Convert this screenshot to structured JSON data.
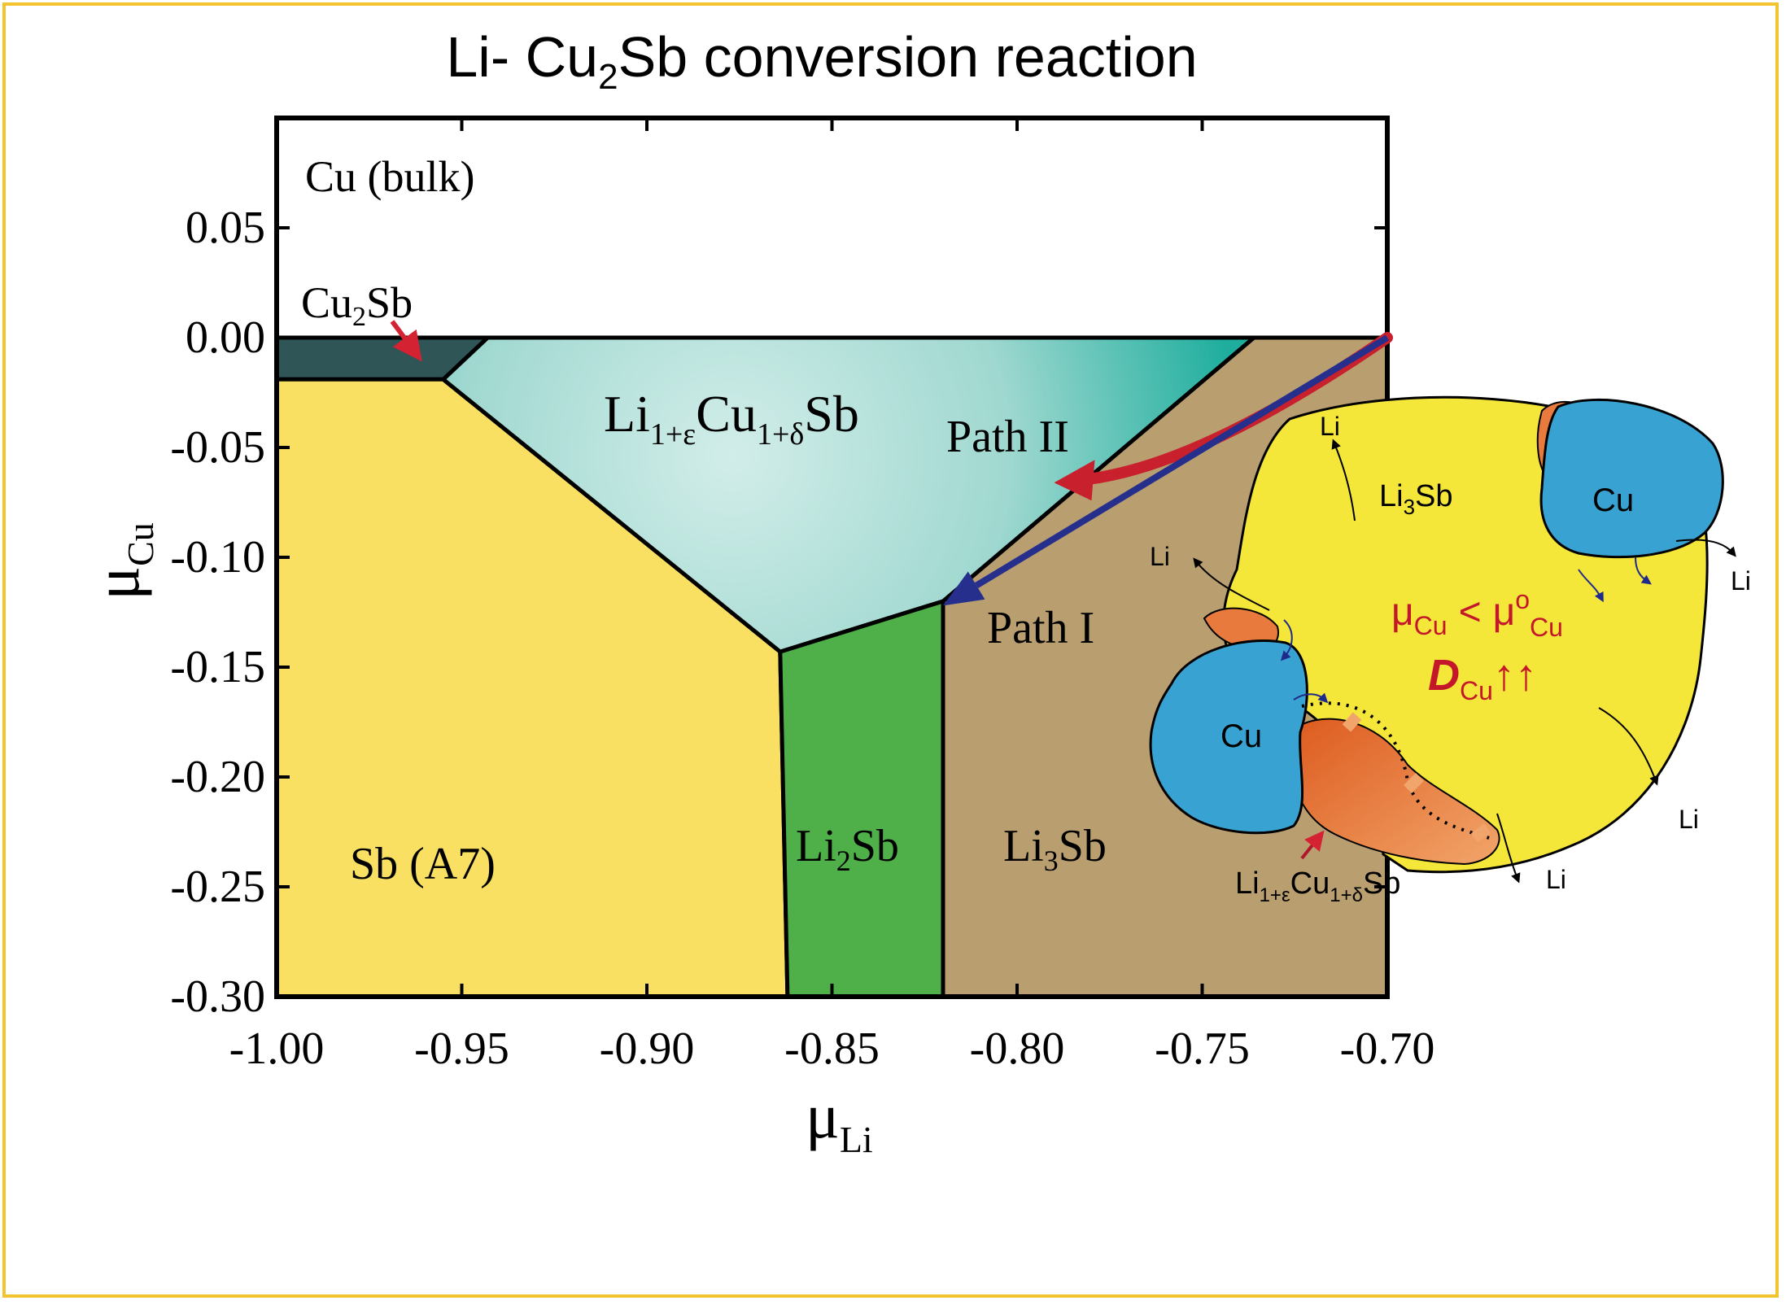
{
  "title": {
    "pre": "Li- Cu",
    "sub": "2",
    "post": "Sb conversion reaction"
  },
  "colors": {
    "frame": "#f2c530",
    "sb_region": "#f9df62",
    "li2sb_region": "#4fb04a",
    "li3sb_region": "#b99e70",
    "cu2sb_region": "#2f5557",
    "ternary_region_center": "#d2ede9",
    "ternary_region_edge": "#2ab1a3",
    "path_ii_arrow": "#c8202c",
    "path_i_arrow": "#262f8c",
    "particle_yellow": "#f5e63a",
    "cu_blue": "#38a2d2",
    "ternary_orange": "#e87a3e",
    "inset_red_text": "#c4182a"
  },
  "chart_data": {
    "type": "phase-diagram",
    "xlim": [
      -1.0,
      -0.7
    ],
    "ylim": [
      -0.3,
      0.1
    ],
    "xlabel": {
      "main": "μ",
      "sub": "Li"
    },
    "ylabel": {
      "main": "μ",
      "sub": "Cu"
    },
    "xticks": [
      -1.0,
      -0.95,
      -0.9,
      -0.85,
      -0.8,
      -0.75,
      -0.7
    ],
    "xtick_labels": [
      "-1.00",
      "-0.95",
      "-0.90",
      "-0.85",
      "-0.80",
      "-0.75",
      "-0.70"
    ],
    "yticks": [
      0.05,
      0.0,
      -0.05,
      -0.1,
      -0.15,
      -0.2,
      -0.25,
      -0.3
    ],
    "ytick_labels": [
      "0.05",
      "0.00",
      "-0.05",
      "-0.10",
      "-0.15",
      "-0.20",
      "-0.25",
      "-0.30"
    ],
    "regions": [
      {
        "name": "Cu (bulk)",
        "polygon": [
          [
            -1.0,
            0.0
          ],
          [
            -0.7,
            0.0
          ],
          [
            -0.7,
            0.1
          ],
          [
            -1.0,
            0.1
          ]
        ]
      },
      {
        "name": "Cu2Sb",
        "polygon": [
          [
            -1.0,
            0.0
          ],
          [
            -0.943,
            0.0
          ],
          [
            -0.955,
            -0.019
          ],
          [
            -1.0,
            -0.019
          ]
        ]
      },
      {
        "name": "Sb (A7)",
        "polygon": [
          [
            -1.0,
            -0.019
          ],
          [
            -0.955,
            -0.019
          ],
          [
            -0.864,
            -0.143
          ],
          [
            -0.862,
            -0.3
          ],
          [
            -1.0,
            -0.3
          ]
        ]
      },
      {
        "name": "Li1+εCu1+δSb",
        "polygon": [
          [
            -0.955,
            -0.019
          ],
          [
            -0.943,
            0.0
          ],
          [
            -0.736,
            0.0
          ],
          [
            -0.82,
            -0.12
          ],
          [
            -0.864,
            -0.143
          ]
        ]
      },
      {
        "name": "Li2Sb",
        "polygon": [
          [
            -0.864,
            -0.143
          ],
          [
            -0.82,
            -0.12
          ],
          [
            -0.82,
            -0.3
          ],
          [
            -0.862,
            -0.3
          ]
        ]
      },
      {
        "name": "Li3Sb",
        "polygon": [
          [
            -0.82,
            -0.12
          ],
          [
            -0.736,
            0.0
          ],
          [
            -0.7,
            0.0
          ],
          [
            -0.7,
            -0.3
          ],
          [
            -0.82,
            -0.3
          ]
        ]
      }
    ],
    "region_labels": {
      "cu_bulk": "Cu (bulk)",
      "cu2sb": {
        "a": "Cu",
        "sub": "2",
        "b": "Sb"
      },
      "ternary": {
        "a": "Li",
        "sub1": "1+ε",
        "b": "Cu",
        "sub2": "1+δ",
        "c": "Sb"
      },
      "sb_a7": "Sb (A7)",
      "li2sb": {
        "a": "Li",
        "sub": "2",
        "b": "Sb"
      },
      "li3sb": {
        "a": "Li",
        "sub": "3",
        "b": "Sb"
      }
    },
    "paths": [
      {
        "name": "Path II",
        "points": [
          [
            -0.7,
            0.0
          ],
          [
            -0.75,
            -0.058
          ],
          [
            -0.79,
            -0.066
          ]
        ]
      },
      {
        "name": "Path I",
        "points": [
          [
            -0.7,
            0.0
          ],
          [
            -0.82,
            -0.122
          ]
        ]
      }
    ]
  },
  "inset": {
    "li_label": "Li",
    "cu_label": "Cu",
    "li3sb": {
      "a": "Li",
      "sub": "3",
      "b": "Sb"
    },
    "mu": {
      "a": "μ",
      "sub1": "Cu",
      "op": "<",
      "b": "μ",
      "sup": "o",
      "sub2": "Cu"
    },
    "diffusion": {
      "a": "D",
      "sub": "Cu",
      "arrows": "↑↑"
    },
    "ternary": {
      "a": "Li",
      "sub1": "1+ε",
      "b": "Cu",
      "sub2": "1+δ",
      "c": "Sb"
    }
  }
}
